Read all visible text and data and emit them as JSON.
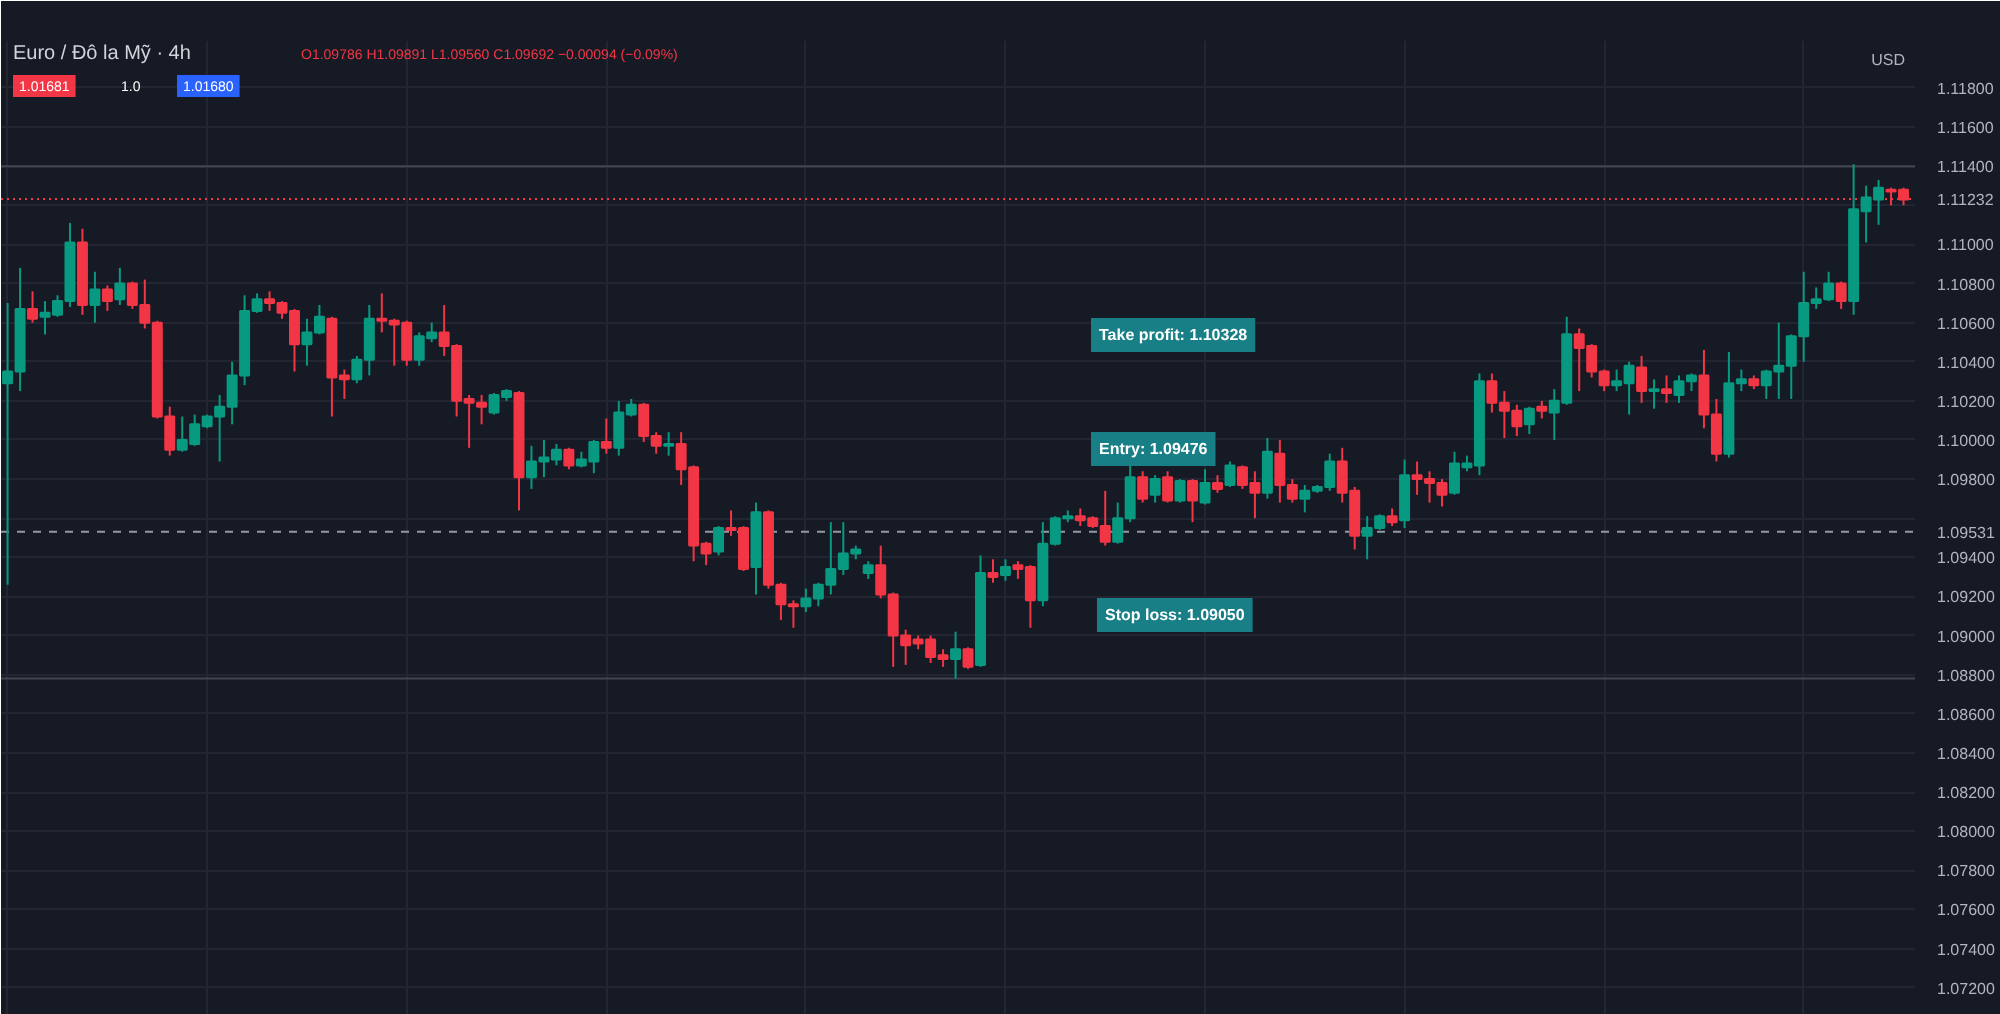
{
  "chart_data": {
    "type": "candlestick",
    "title": "Euro / Đô la Mỹ · 4h",
    "subtitle": "O1.09786 H1.09891 L1.09560 C1.09692 −0.00094 (−0.09%)",
    "ylabel": "USD",
    "categories": [
      null,
      null,
      null,
      null,
      null,
      null,
      null,
      null,
      null,
      null,
      null,
      null,
      null,
      null,
      null,
      null,
      null,
      null,
      null,
      null,
      null,
      null,
      null,
      null,
      null,
      null,
      null,
      null,
      null,
      null,
      null,
      null,
      null,
      null,
      null,
      null,
      null,
      null,
      null,
      null,
      null,
      null,
      null,
      null,
      null,
      null,
      null,
      null,
      null,
      null,
      null,
      null,
      null,
      null,
      null,
      null,
      null,
      null,
      null,
      null,
      null,
      null,
      null,
      null,
      null,
      null,
      null,
      null,
      null,
      null,
      null,
      null,
      null,
      null,
      null,
      null,
      null,
      null,
      null,
      null,
      null,
      null,
      null,
      null,
      null,
      null,
      null,
      null,
      null,
      null,
      null,
      null,
      null,
      null,
      null,
      null,
      null,
      null,
      null,
      null,
      null,
      null,
      null,
      null,
      null,
      null,
      null,
      null,
      null,
      null,
      null,
      null,
      null,
      null,
      null,
      null,
      null,
      null,
      null,
      null,
      null,
      null,
      null,
      null,
      null,
      null,
      null,
      null,
      null,
      null,
      null,
      null,
      null,
      null,
      null,
      null,
      null,
      null,
      null,
      null,
      null,
      null,
      null,
      null,
      null,
      null,
      null,
      null,
      null,
      null,
      null,
      null,
      null
    ],
    "ohlc": [
      [
        1.1029,
        1.107,
        1.0926,
        1.1035
      ],
      [
        1.1035,
        1.1088,
        1.1025,
        1.1067
      ],
      [
        1.1067,
        1.1076,
        1.106,
        1.1062
      ],
      [
        1.1063,
        1.1071,
        1.1054,
        1.1065
      ],
      [
        1.1064,
        1.1074,
        1.1063,
        1.1071
      ],
      [
        1.1071,
        1.1111,
        1.1068,
        1.1101
      ],
      [
        1.1101,
        1.1108,
        1.1064,
        1.1069
      ],
      [
        1.1069,
        1.1086,
        1.106,
        1.1077
      ],
      [
        1.1077,
        1.1079,
        1.1066,
        1.1071
      ],
      [
        1.1072,
        1.1088,
        1.1069,
        1.108
      ],
      [
        1.108,
        1.1081,
        1.1067,
        1.1069
      ],
      [
        1.1069,
        1.1082,
        1.1057,
        1.106
      ],
      [
        1.106,
        1.1061,
        1.1011,
        1.1012
      ],
      [
        1.1012,
        1.1017,
        1.0992,
        1.0995
      ],
      [
        1.0995,
        1.1012,
        1.0994,
        1.1
      ],
      [
        1.0998,
        1.1013,
        1.0997,
        1.1008
      ],
      [
        1.1007,
        1.1013,
        1.1006,
        1.1012
      ],
      [
        1.1012,
        1.1023,
        1.0989,
        1.1017
      ],
      [
        1.1017,
        1.104,
        1.1008,
        1.1033
      ],
      [
        1.1033,
        1.1074,
        1.1028,
        1.1066
      ],
      [
        1.1066,
        1.1075,
        1.1065,
        1.1072
      ],
      [
        1.1072,
        1.1076,
        1.1066,
        1.107
      ],
      [
        1.107,
        1.1071,
        1.1062,
        1.1065
      ],
      [
        1.1066,
        1.1067,
        1.1035,
        1.1049
      ],
      [
        1.1049,
        1.1062,
        1.1038,
        1.1055
      ],
      [
        1.1055,
        1.1069,
        1.1054,
        1.1063
      ],
      [
        1.1062,
        1.1063,
        1.1012,
        1.1032
      ],
      [
        1.1033,
        1.1036,
        1.1021,
        1.1031
      ],
      [
        1.1031,
        1.1043,
        1.1029,
        1.1041
      ],
      [
        1.1041,
        1.1069,
        1.1033,
        1.1062
      ],
      [
        1.1062,
        1.1075,
        1.1055,
        1.1061
      ],
      [
        1.1061,
        1.1062,
        1.1038,
        1.1059
      ],
      [
        1.106,
        1.1061,
        1.1038,
        1.1041
      ],
      [
        1.1041,
        1.1055,
        1.1038,
        1.1053
      ],
      [
        1.1052,
        1.106,
        1.105,
        1.1055
      ],
      [
        1.1055,
        1.1069,
        1.1043,
        1.1048
      ],
      [
        1.1048,
        1.1049,
        1.1012,
        1.102
      ],
      [
        1.1021,
        1.1023,
        1.0996,
        1.1019
      ],
      [
        1.1019,
        1.1023,
        1.1008,
        1.1017
      ],
      [
        1.1014,
        1.1024,
        1.1013,
        1.1023
      ],
      [
        1.1022,
        1.1026,
        1.102,
        1.1025
      ],
      [
        1.1024,
        1.1025,
        1.0964,
        1.0981
      ],
      [
        1.0981,
        1.0997,
        1.0975,
        1.0989
      ],
      [
        1.0989,
        1.1,
        1.0981,
        1.0991
      ],
      [
        1.099,
        1.0998,
        1.0987,
        1.0995
      ],
      [
        1.0995,
        1.0996,
        1.0985,
        1.0987
      ],
      [
        1.0987,
        1.0994,
        1.0986,
        1.099
      ],
      [
        1.0989,
        1.1,
        1.0983,
        1.0999
      ],
      [
        1.0999,
        1.1011,
        1.0993,
        1.0996
      ],
      [
        1.0996,
        1.102,
        1.0992,
        1.1014
      ],
      [
        1.1013,
        1.1021,
        1.1012,
        1.1018
      ],
      [
        1.1018,
        1.1019,
        1.0999,
        1.1002
      ],
      [
        1.1002,
        1.1004,
        1.0993,
        1.0997
      ],
      [
        1.0997,
        1.1004,
        1.0992,
        1.0998
      ],
      [
        1.0998,
        1.1004,
        1.0977,
        1.0985
      ],
      [
        1.0986,
        1.0987,
        1.0938,
        1.0946
      ],
      [
        1.0947,
        1.0948,
        1.0936,
        1.0942
      ],
      [
        1.0943,
        1.0956,
        1.0941,
        1.0955
      ],
      [
        1.0955,
        1.0964,
        1.0951,
        1.0954
      ],
      [
        1.0955,
        1.0956,
        1.0933,
        1.0934
      ],
      [
        1.0935,
        1.0968,
        1.0921,
        1.0963
      ],
      [
        1.0963,
        1.0964,
        1.0924,
        1.0926
      ],
      [
        1.0926,
        1.0927,
        1.0908,
        1.0916
      ],
      [
        1.0916,
        1.0918,
        1.0904,
        1.0915
      ],
      [
        1.0915,
        1.0924,
        1.0912,
        1.0919
      ],
      [
        1.0919,
        1.0927,
        1.0915,
        1.0926
      ],
      [
        1.0926,
        1.0958,
        1.0921,
        1.0934
      ],
      [
        1.0934,
        1.0958,
        1.0931,
        1.0942
      ],
      [
        1.0942,
        1.0946,
        1.0939,
        1.0944
      ],
      [
        1.0932,
        1.0938,
        1.0929,
        1.0936
      ],
      [
        1.0936,
        1.0946,
        1.0919,
        1.0921
      ],
      [
        1.0921,
        1.0922,
        1.0884,
        1.09
      ],
      [
        1.09,
        1.0903,
        1.0885,
        1.0895
      ],
      [
        1.0898,
        1.09,
        1.0893,
        1.0896
      ],
      [
        1.0898,
        1.09,
        1.0886,
        1.0889
      ],
      [
        1.089,
        1.0893,
        1.0884,
        1.0888
      ],
      [
        1.0888,
        1.0902,
        1.0878,
        1.0893
      ],
      [
        1.0893,
        1.0894,
        1.0883,
        1.0884
      ],
      [
        1.0885,
        1.0941,
        1.0884,
        1.0932
      ],
      [
        1.0932,
        1.0939,
        1.0927,
        1.093
      ],
      [
        1.0931,
        1.0939,
        1.0928,
        1.0935
      ],
      [
        1.0936,
        1.0938,
        1.0929,
        1.0934
      ],
      [
        1.0935,
        1.0936,
        1.0904,
        1.0918
      ],
      [
        1.0918,
        1.0958,
        1.0915,
        1.0947
      ],
      [
        1.0947,
        1.0961,
        1.0946,
        1.096
      ],
      [
        1.096,
        1.0964,
        1.0958,
        1.0961
      ],
      [
        1.0961,
        1.0965,
        1.0956,
        1.0959
      ],
      [
        1.096,
        1.0961,
        1.0955,
        1.0956
      ],
      [
        1.0956,
        1.0974,
        1.0946,
        1.0948
      ],
      [
        1.0948,
        1.0968,
        1.0947,
        1.096
      ],
      [
        1.096,
        1.0987,
        1.0958,
        1.0981
      ],
      [
        1.0981,
        1.0984,
        1.0968,
        1.097
      ],
      [
        1.0972,
        1.0982,
        1.0968,
        1.098
      ],
      [
        1.0981,
        1.0984,
        1.0968,
        1.0969
      ],
      [
        1.0969,
        1.098,
        1.0968,
        1.0979
      ],
      [
        1.0979,
        1.098,
        1.0958,
        1.0969
      ],
      [
        1.0968,
        1.0985,
        1.0967,
        1.0978
      ],
      [
        1.0978,
        1.0982,
        1.0973,
        1.0975
      ],
      [
        1.0977,
        1.0989,
        1.0976,
        1.0987
      ],
      [
        1.0986,
        1.0987,
        1.0975,
        1.0977
      ],
      [
        1.0978,
        1.0984,
        1.096,
        1.0973
      ],
      [
        1.0973,
        1.1001,
        1.097,
        1.0994
      ],
      [
        1.0993,
        1.1,
        1.0968,
        1.0977
      ],
      [
        1.0977,
        1.098,
        1.0968,
        1.097
      ],
      [
        1.097,
        1.0977,
        1.0963,
        1.0974
      ],
      [
        1.0974,
        1.0977,
        1.0973,
        1.0976
      ],
      [
        1.0976,
        1.0993,
        1.0974,
        1.0989
      ],
      [
        1.0989,
        1.0996,
        1.0968,
        1.0973
      ],
      [
        1.0974,
        1.0976,
        1.0944,
        1.0951
      ],
      [
        1.0951,
        1.0961,
        1.0939,
        1.0955
      ],
      [
        1.0955,
        1.0962,
        1.0954,
        1.0961
      ],
      [
        1.0961,
        1.0965,
        1.0956,
        1.0958
      ],
      [
        1.0959,
        1.099,
        1.0955,
        1.0982
      ],
      [
        1.0982,
        1.0989,
        1.0972,
        1.098
      ],
      [
        1.098,
        1.0984,
        1.0968,
        1.0978
      ],
      [
        1.0978,
        1.098,
        1.0966,
        1.0972
      ],
      [
        1.0973,
        1.0994,
        1.0972,
        1.0988
      ],
      [
        1.0986,
        1.0992,
        1.0984,
        1.0988
      ],
      [
        1.0987,
        1.1034,
        1.0982,
        1.103
      ],
      [
        1.103,
        1.1034,
        1.1014,
        1.1019
      ],
      [
        1.1019,
        1.1025,
        1.1001,
        1.1015
      ],
      [
        1.1015,
        1.1018,
        1.1002,
        1.1007
      ],
      [
        1.1008,
        1.1017,
        1.1003,
        1.1016
      ],
      [
        1.1017,
        1.102,
        1.1011,
        1.1015
      ],
      [
        1.1014,
        1.1026,
        1.1,
        1.102
      ],
      [
        1.1019,
        1.1063,
        1.1018,
        1.1054
      ],
      [
        1.1054,
        1.1057,
        1.1025,
        1.1047
      ],
      [
        1.1048,
        1.1049,
        1.1032,
        1.1035
      ],
      [
        1.1035,
        1.1036,
        1.1025,
        1.1028
      ],
      [
        1.1028,
        1.1036,
        1.1025,
        1.103
      ],
      [
        1.1029,
        1.104,
        1.1013,
        1.1038
      ],
      [
        1.1037,
        1.1043,
        1.1019,
        1.1025
      ],
      [
        1.1025,
        1.1031,
        1.1016,
        1.1026
      ],
      [
        1.1026,
        1.1033,
        1.1019,
        1.1024
      ],
      [
        1.1023,
        1.1033,
        1.1019,
        1.103
      ],
      [
        1.103,
        1.1034,
        1.1025,
        1.1033
      ],
      [
        1.1033,
        1.1046,
        1.1006,
        1.1013
      ],
      [
        1.1013,
        1.1021,
        1.0989,
        1.0993
      ],
      [
        1.0993,
        1.1045,
        1.0991,
        1.1029
      ],
      [
        1.1029,
        1.1036,
        1.1025,
        1.1031
      ],
      [
        1.1031,
        1.1033,
        1.1026,
        1.1028
      ],
      [
        1.1028,
        1.1036,
        1.1021,
        1.1035
      ],
      [
        1.1035,
        1.106,
        1.1021,
        1.1038
      ],
      [
        1.1038,
        1.1054,
        1.1021,
        1.1053
      ],
      [
        1.1053,
        1.1086,
        1.104,
        1.107
      ],
      [
        1.107,
        1.1078,
        1.1067,
        1.1072
      ],
      [
        1.1072,
        1.1086,
        1.1071,
        1.108
      ],
      [
        1.108,
        1.1081,
        1.1067,
        1.1071
      ],
      [
        1.1071,
        1.1141,
        1.1064,
        1.1118
      ],
      [
        1.1117,
        1.113,
        1.1101,
        1.1124
      ],
      [
        1.1123,
        1.1133,
        1.111,
        1.1129
      ],
      [
        1.1128,
        1.1129,
        1.112,
        1.1127
      ],
      [
        1.1128,
        1.1129,
        1.112,
        1.1123
      ]
    ],
    "colors": [
      "#089981",
      "#089981",
      "#f23645",
      "#089981",
      "#089981",
      "#089981",
      "#f23645",
      "#089981",
      "#f23645",
      "#089981",
      "#f23645",
      "#f23645",
      "#f23645",
      "#f23645",
      "#089981",
      "#089981",
      "#089981",
      "#089981",
      "#089981",
      "#089981",
      "#089981",
      "#f23645",
      "#f23645",
      "#f23645",
      "#089981",
      "#089981",
      "#f23645",
      "#f23645",
      "#089981",
      "#089981",
      "#f23645",
      "#f23645",
      "#f23645",
      "#089981",
      "#089981",
      "#f23645",
      "#f23645",
      "#f23645",
      "#f23645",
      "#089981",
      "#089981",
      "#f23645",
      "#089981",
      "#089981",
      "#089981",
      "#f23645",
      "#089981",
      "#089981",
      "#f23645",
      "#089981",
      "#089981",
      "#f23645",
      "#f23645",
      "#089981",
      "#f23645",
      "#f23645",
      "#f23645",
      "#089981",
      "#f23645",
      "#f23645",
      "#089981",
      "#f23645",
      "#f23645",
      "#f23645",
      "#089981",
      "#089981",
      "#089981",
      "#089981",
      "#089981",
      "#089981",
      "#f23645",
      "#f23645",
      "#f23645",
      "#f23645",
      "#f23645",
      "#f23645",
      "#089981",
      "#f23645",
      "#089981",
      "#f23645",
      "#089981",
      "#f23645",
      "#f23645",
      "#089981",
      "#089981",
      "#089981",
      "#f23645",
      "#f23645",
      "#f23645",
      "#089981",
      "#089981",
      "#f23645",
      "#089981",
      "#f23645",
      "#089981",
      "#f23645",
      "#089981",
      "#f23645",
      "#089981",
      "#f23645",
      "#f23645",
      "#089981",
      "#f23645",
      "#f23645",
      "#089981",
      "#089981",
      "#089981",
      "#f23645",
      "#f23645",
      "#089981",
      "#089981",
      "#f23645",
      "#089981",
      "#f23645",
      "#f23645",
      "#f23645",
      "#089981",
      "#089981",
      "#089981",
      "#f23645",
      "#f23645",
      "#f23645",
      "#089981",
      "#f23645",
      "#089981",
      "#089981",
      "#f23645",
      "#f23645",
      "#f23645",
      "#089981",
      "#089981",
      "#f23645",
      "#089981",
      "#f23645",
      "#089981",
      "#089981",
      "#f23645",
      "#f23645",
      "#089981",
      "#089981",
      "#f23645",
      "#089981",
      "#089981",
      "#089981",
      "#089981",
      "#089981",
      "#089981",
      "#f23645",
      "#089981",
      "#089981",
      "#089981",
      "#f23645",
      "#f23645"
    ],
    "ylim": [
      1.0706,
      1.1204
    ],
    "yticks": [
      {
        "value": 1.072,
        "label": "1.07200"
      },
      {
        "value": 1.074,
        "label": "1.07400"
      },
      {
        "value": 1.076,
        "label": "1.07600"
      },
      {
        "value": 1.078,
        "label": "1.07800"
      },
      {
        "value": 1.08,
        "label": "1.08000"
      },
      {
        "value": 1.082,
        "label": "1.08200"
      },
      {
        "value": 1.084,
        "label": "1.08400"
      },
      {
        "value": 1.086,
        "label": "1.08600"
      },
      {
        "value": 1.088,
        "label": "1.08800"
      },
      {
        "value": 1.09,
        "label": "1.09000"
      },
      {
        "value": 1.092,
        "label": "1.09200"
      },
      {
        "value": 1.094,
        "label": "1.09400"
      },
      {
        "value": 1.096,
        "label": null
      },
      {
        "value": 1.098,
        "label": "1.09800"
      },
      {
        "value": 1.1,
        "label": "1.10000"
      },
      {
        "value": 1.102,
        "label": "1.10200"
      },
      {
        "value": 1.104,
        "label": "1.10400"
      },
      {
        "value": 1.106,
        "label": "1.10600"
      },
      {
        "value": 1.108,
        "label": "1.10800"
      },
      {
        "value": 1.11,
        "label": "1.11000"
      },
      {
        "value": 1.112,
        "label": null
      },
      {
        "value": 1.114,
        "label": "1.11400"
      },
      {
        "value": 1.116,
        "label": "1.11600"
      },
      {
        "value": 1.118,
        "label": "1.11800"
      }
    ],
    "tick_labels": "y",
    "grid": true,
    "ref_lines": [
      {
        "axis": "y",
        "value": 1.09531,
        "label": "1.09531",
        "color": "#9598a1",
        "line_style": "dashed"
      },
      {
        "axis": "y",
        "value": 1.11232,
        "label": "1.11232",
        "color": "#f23645",
        "line_style": "dotted"
      },
      {
        "axis": "y",
        "value": 1.114,
        "label": null,
        "color": "#434651",
        "line_style": "solid"
      },
      {
        "axis": "y",
        "value": 1.0878,
        "label": null,
        "color": "#434651",
        "line_style": "solid"
      }
    ],
    "annotations": [
      "1.01681",
      "1.0",
      "1.01680",
      "Take profit: 1.10328",
      "Entry: 1.09476",
      "Stop loss: 1.09050"
    ]
  }
}
